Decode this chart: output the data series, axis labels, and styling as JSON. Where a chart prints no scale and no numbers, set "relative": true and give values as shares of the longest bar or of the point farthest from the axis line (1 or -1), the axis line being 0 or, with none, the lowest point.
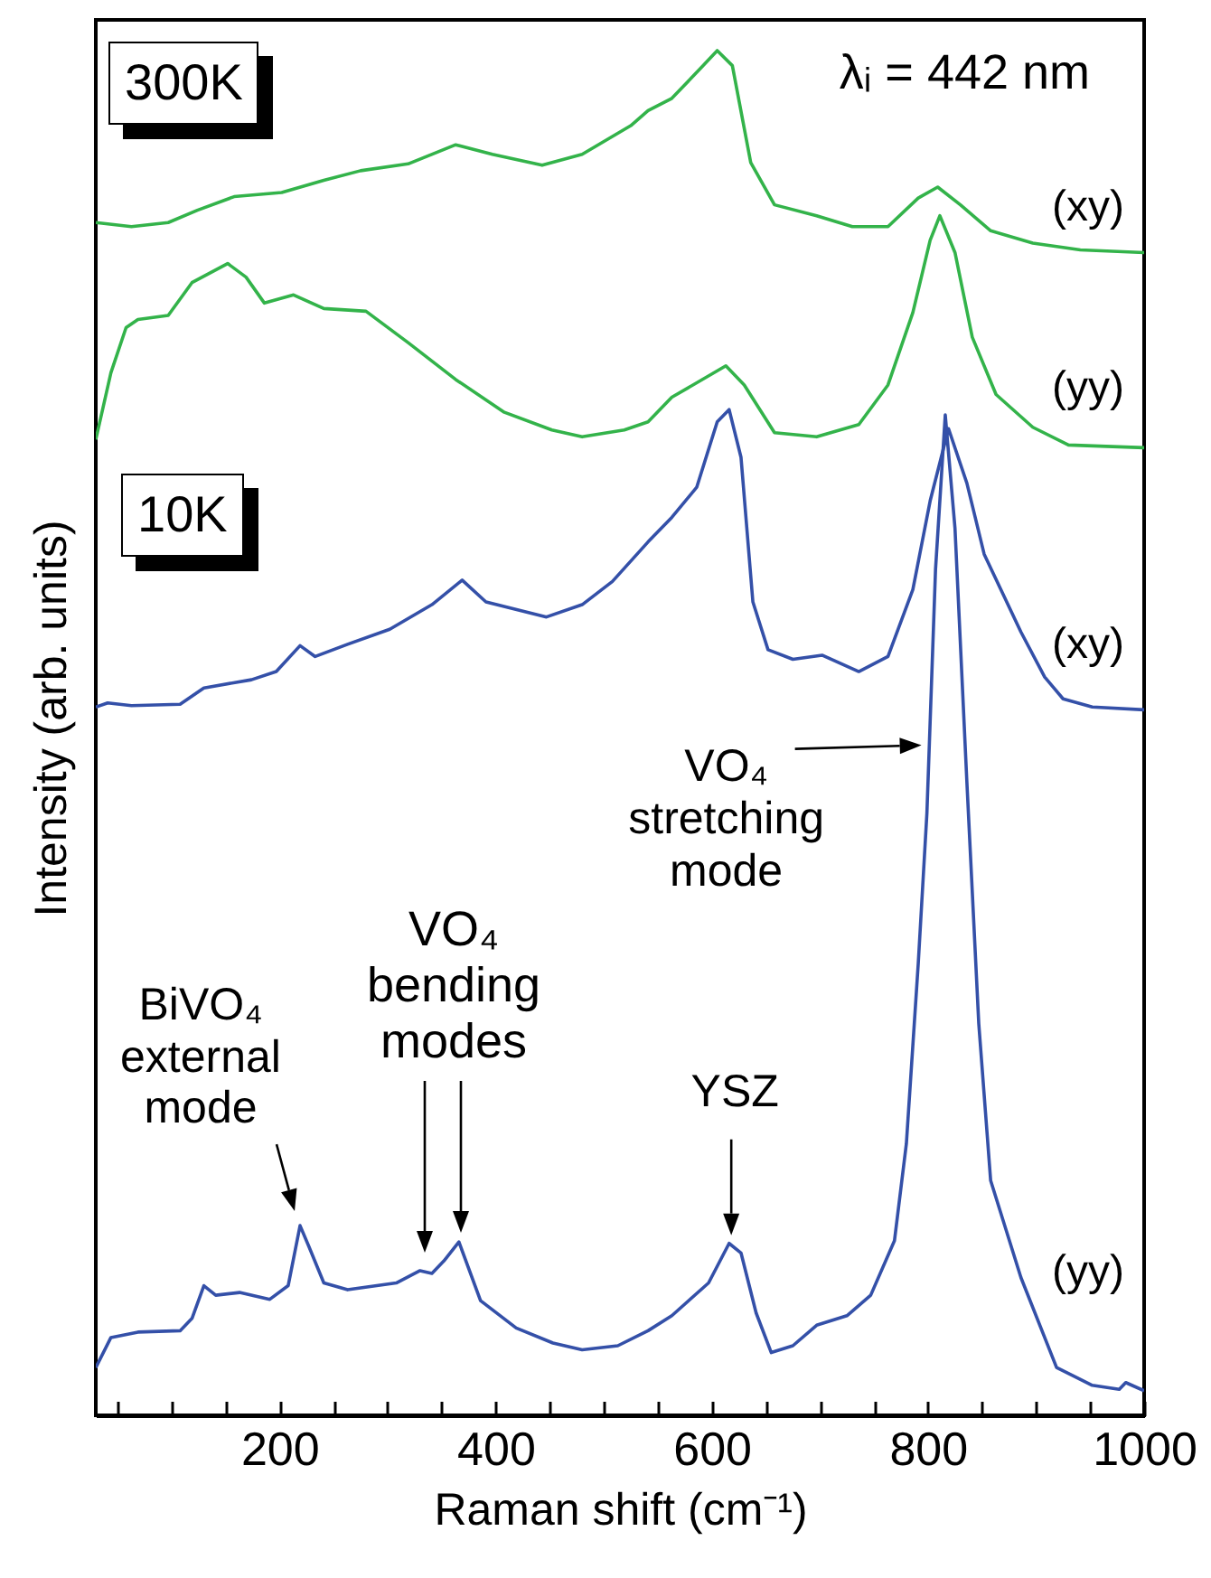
{
  "chart_data": {
    "type": "line",
    "relative": true,
    "xlabel": "Raman shift (cm⁻¹)",
    "ylabel": "Intensity (arb. units)",
    "xlim": [
      30,
      1000
    ],
    "xticks": [
      {
        "value": 50,
        "label": null
      },
      {
        "value": 100,
        "label": null
      },
      {
        "value": 150,
        "label": null
      },
      200,
      {
        "value": 250,
        "label": null
      },
      {
        "value": 300,
        "label": null
      },
      {
        "value": 350,
        "label": null
      },
      400,
      {
        "value": 450,
        "label": null
      },
      {
        "value": 500,
        "label": null
      },
      {
        "value": 550,
        "label": null
      },
      600,
      {
        "value": 650,
        "label": null
      },
      {
        "value": 700,
        "label": null
      },
      {
        "value": 750,
        "label": null
      },
      800,
      {
        "value": 850,
        "label": null
      },
      {
        "value": 900,
        "label": null
      },
      {
        "value": 950,
        "label": null
      },
      1000
    ],
    "line_style": "solid",
    "annotations": [
      "300K",
      "10K",
      "λᵢ = 442 nm",
      {
        "text": "BiVO₄ external mode",
        "x": 219,
        "y": 0.139
      },
      "VO₄ bending modes",
      {
        "text": "YSZ",
        "x": 618,
        "y": 0.132
      },
      {
        "text": "VO₄ stretching mode",
        "x": 794,
        "y": 0.491
      }
    ],
    "series": [
      {
        "name": "(xy)",
        "color": "#33b34a",
        "x": [
          30,
          63,
          97,
          124,
          158,
          202,
          241,
          275,
          319,
          363,
          397,
          443,
          480,
          525,
          541,
          563,
          592,
          605,
          619,
          636,
          658,
          697,
          730,
          763,
          791,
          809,
          830,
          858,
          897,
          941,
          1000
        ],
        "values": [
          0.874,
          0.871,
          0.874,
          0.883,
          0.893,
          0.896,
          0.905,
          0.912,
          0.917,
          0.931,
          0.924,
          0.916,
          0.924,
          0.945,
          0.956,
          0.965,
          0.989,
          1.0,
          0.989,
          0.918,
          0.887,
          0.879,
          0.871,
          0.871,
          0.892,
          0.9,
          0.887,
          0.868,
          0.859,
          0.854,
          0.852
        ]
      },
      {
        "name": "(yy)",
        "color": "#33b34a",
        "x": [
          30,
          44,
          58,
          69,
          97,
          119,
          152,
          169,
          186,
          213,
          241,
          280,
          319,
          363,
          408,
          452,
          480,
          519,
          541,
          563,
          613,
          630,
          658,
          697,
          736,
          763,
          786,
          802,
          811,
          825,
          841,
          863,
          897,
          930,
          1000
        ],
        "values": [
          0.715,
          0.764,
          0.797,
          0.803,
          0.806,
          0.83,
          0.844,
          0.834,
          0.815,
          0.821,
          0.811,
          0.809,
          0.786,
          0.759,
          0.735,
          0.722,
          0.717,
          0.722,
          0.728,
          0.746,
          0.769,
          0.755,
          0.72,
          0.717,
          0.726,
          0.755,
          0.808,
          0.861,
          0.879,
          0.852,
          0.79,
          0.748,
          0.724,
          0.711,
          0.709
        ]
      },
      {
        "name": "(xy)",
        "color": "#3450a8",
        "x": [
          30,
          41,
          63,
          108,
          130,
          174,
          197,
          219,
          233,
          263,
          302,
          341,
          369,
          391,
          447,
          480,
          508,
          541,
          563,
          586,
          605,
          616,
          627,
          638,
          652,
          675,
          702,
          736,
          763,
          786,
          802,
          819,
          836,
          852,
          886,
          908,
          925,
          952,
          1000
        ],
        "values": [
          0.519,
          0.522,
          0.52,
          0.521,
          0.533,
          0.539,
          0.545,
          0.564,
          0.556,
          0.565,
          0.576,
          0.594,
          0.612,
          0.596,
          0.585,
          0.594,
          0.611,
          0.64,
          0.658,
          0.68,
          0.728,
          0.737,
          0.702,
          0.596,
          0.561,
          0.554,
          0.557,
          0.545,
          0.556,
          0.605,
          0.67,
          0.723,
          0.683,
          0.631,
          0.574,
          0.541,
          0.525,
          0.519,
          0.517
        ]
      },
      {
        "name": "(yy)",
        "color": "#3450a8",
        "x": [
          30,
          44,
          69,
          108,
          119,
          130,
          141,
          163,
          191,
          208,
          219,
          227,
          241,
          263,
          308,
          330,
          341,
          352,
          366,
          386,
          419,
          453,
          480,
          513,
          541,
          563,
          597,
          616,
          627,
          641,
          655,
          675,
          697,
          725,
          747,
          769,
          780,
          791,
          799,
          807,
          816,
          825,
          836,
          847,
          858,
          886,
          919,
          952,
          977,
          983,
          1000
        ],
        "values": [
          0.035,
          0.057,
          0.061,
          0.062,
          0.071,
          0.095,
          0.088,
          0.09,
          0.085,
          0.095,
          0.139,
          0.124,
          0.097,
          0.092,
          0.097,
          0.106,
          0.104,
          0.113,
          0.127,
          0.084,
          0.064,
          0.053,
          0.048,
          0.051,
          0.062,
          0.073,
          0.097,
          0.126,
          0.119,
          0.075,
          0.046,
          0.051,
          0.066,
          0.073,
          0.088,
          0.128,
          0.199,
          0.331,
          0.441,
          0.62,
          0.733,
          0.65,
          0.464,
          0.287,
          0.172,
          0.101,
          0.035,
          0.022,
          0.019,
          0.024,
          0.018
        ]
      }
    ]
  }
}
